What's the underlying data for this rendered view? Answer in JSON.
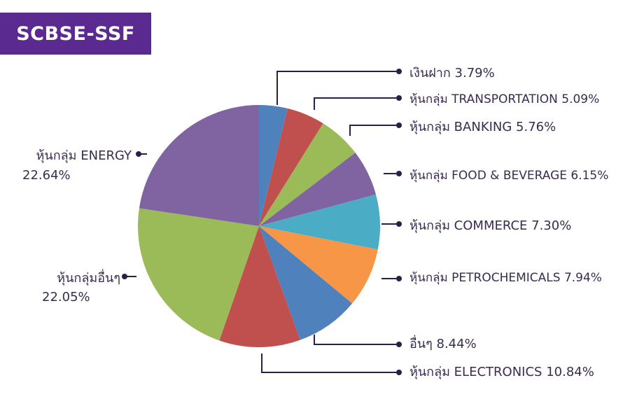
{
  "header": {
    "title": "SCBSE-SSF"
  },
  "colors": {
    "leader": "#2a1f47",
    "badge": "#5b2a91"
  },
  "chart_data": {
    "type": "pie",
    "title": "SCBSE-SSF",
    "slices": [
      {
        "label": "เงินฝาก 3.79%",
        "value": 3.79,
        "color": "#4f81bd"
      },
      {
        "label": "หุ้นกลุ่ม TRANSPORTATION 5.09%",
        "value": 5.09,
        "color": "#c0504d"
      },
      {
        "label": "หุ้นกลุ่ม BANKING 5.76%",
        "value": 5.76,
        "color": "#9bbb59"
      },
      {
        "label": "หุ้นกลุ่ม FOOD & BEVERAGE 6.15%",
        "value": 6.15,
        "color": "#8064a2"
      },
      {
        "label": "หุ้นกลุ่ม COMMERCE 7.30%",
        "value": 7.3,
        "color": "#4bacc6"
      },
      {
        "label": "หุ้นกลุ่ม PETROCHEMICALS 7.94%",
        "value": 7.94,
        "color": "#f79646"
      },
      {
        "label": "อื่นๆ 8.44%",
        "value": 8.44,
        "color": "#4f81bd"
      },
      {
        "label": "หุ้นกลุ่ม ELECTRONICS 10.84%",
        "value": 10.84,
        "color": "#c0504d"
      },
      {
        "label": [
          "หุ้นกลุ่มอื่นๆ",
          "22.05%"
        ],
        "value": 22.05,
        "color": "#9bbb59"
      },
      {
        "label": [
          "หุ้นกลุ่ม ENERGY",
          "22.64%"
        ],
        "value": 22.64,
        "color": "#8064a2"
      }
    ]
  }
}
